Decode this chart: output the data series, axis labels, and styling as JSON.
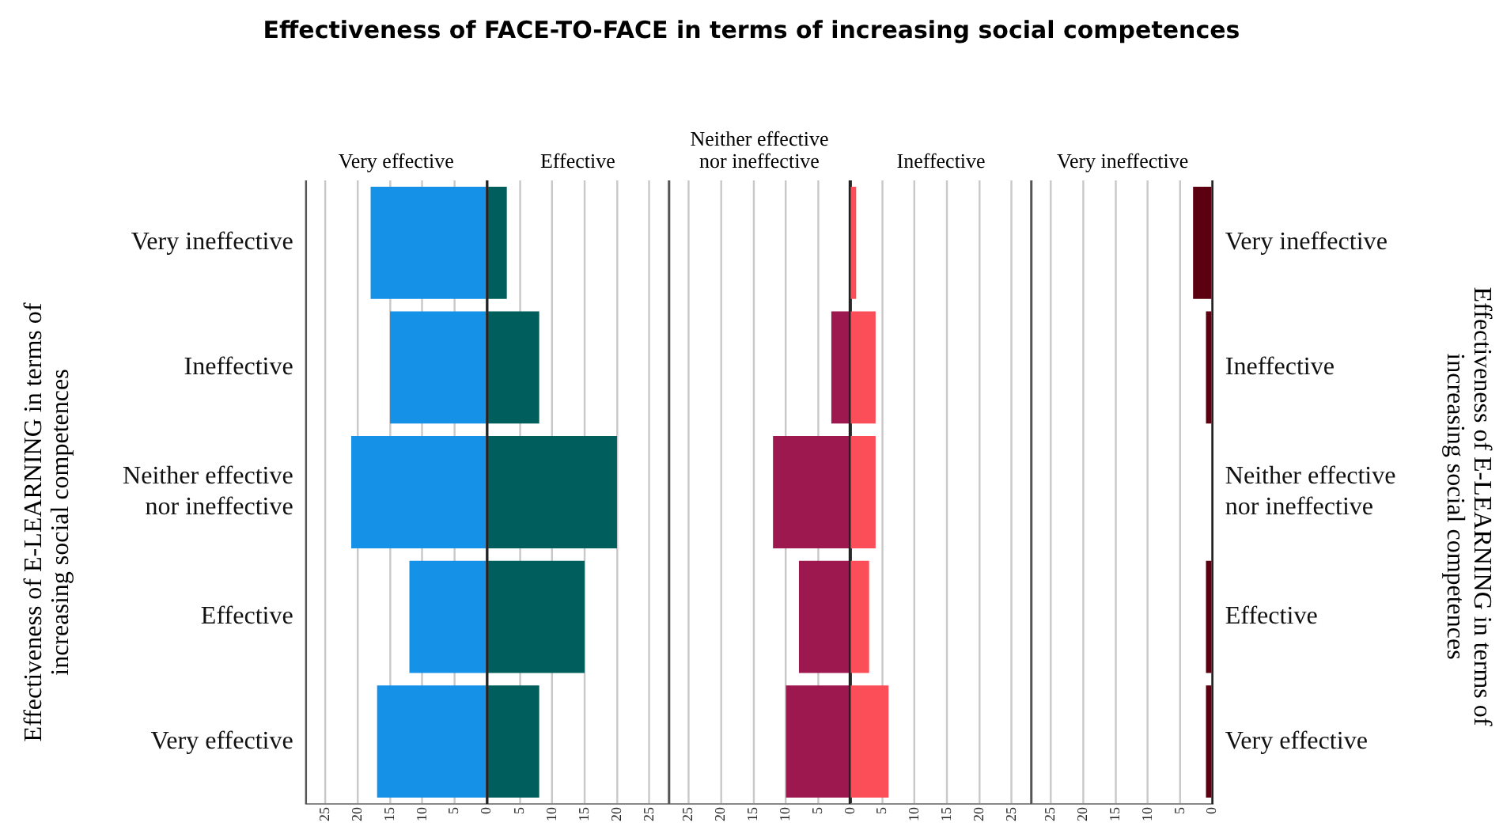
{
  "chart_data": [
    {
      "type": "bar",
      "orientation": "horizontal",
      "title": "Effectiveness of FACE-TO-FACE in terms of increasing social competences",
      "subtitle": "Very effective",
      "ylabel": "Effectiveness of E-LEARNING in terms of increasing social competences",
      "categories": [
        "Very ineffective",
        "Ineffective",
        "Neither effective nor ineffective",
        "Effective",
        "Very effective"
      ],
      "values": [
        18,
        15,
        21,
        12,
        17
      ],
      "color": "#1591e8",
      "xlim": [
        28,
        0
      ],
      "xticks": [
        0,
        5,
        10,
        15,
        20,
        25
      ],
      "grid": "x",
      "legend": false
    },
    {
      "type": "bar",
      "orientation": "horizontal",
      "subtitle": "Effective",
      "categories": [
        null,
        null,
        null,
        null,
        null
      ],
      "values": [
        3,
        8,
        20,
        15,
        8
      ],
      "color": "#005e5c",
      "xlim": [
        0,
        28
      ],
      "xticks": [
        5,
        10,
        15,
        20,
        25
      ],
      "grid": "x",
      "legend": false,
      "tick_labels": "x"
    },
    {
      "type": "bar",
      "orientation": "horizontal",
      "subtitle": "Neither effective nor ineffective",
      "categories": [
        null,
        null,
        null,
        null,
        null
      ],
      "values": [
        0,
        3,
        12,
        8,
        10
      ],
      "color": "#9e1850",
      "xlim": [
        28,
        0
      ],
      "xticks": [
        0,
        5,
        10,
        15,
        20,
        25
      ],
      "grid": "x",
      "legend": false,
      "tick_labels": "x"
    },
    {
      "type": "bar",
      "orientation": "horizontal",
      "subtitle": "Ineffective",
      "categories": [
        null,
        null,
        null,
        null,
        null
      ],
      "values": [
        1,
        4,
        4,
        3,
        6
      ],
      "color": "#fc4e58",
      "xlim": [
        0,
        28
      ],
      "xticks": [
        5,
        10,
        15,
        20,
        25
      ],
      "grid": "x",
      "legend": false,
      "tick_labels": "x"
    },
    {
      "type": "bar",
      "orientation": "horizontal",
      "subtitle": "Very ineffective",
      "y2label": "Effectiveness of E-LEARNING in terms of increasing social competences",
      "categories": [
        "Very ineffective",
        "Ineffective",
        "Neither effective nor ineffective",
        "Effective",
        "Very effective"
      ],
      "values": [
        3,
        1,
        0,
        1,
        1
      ],
      "color": "#5c0011",
      "xlim": [
        28,
        0
      ],
      "xticks": [
        0,
        5,
        10,
        15,
        20,
        25
      ],
      "grid": "x",
      "legend": false
    }
  ]
}
